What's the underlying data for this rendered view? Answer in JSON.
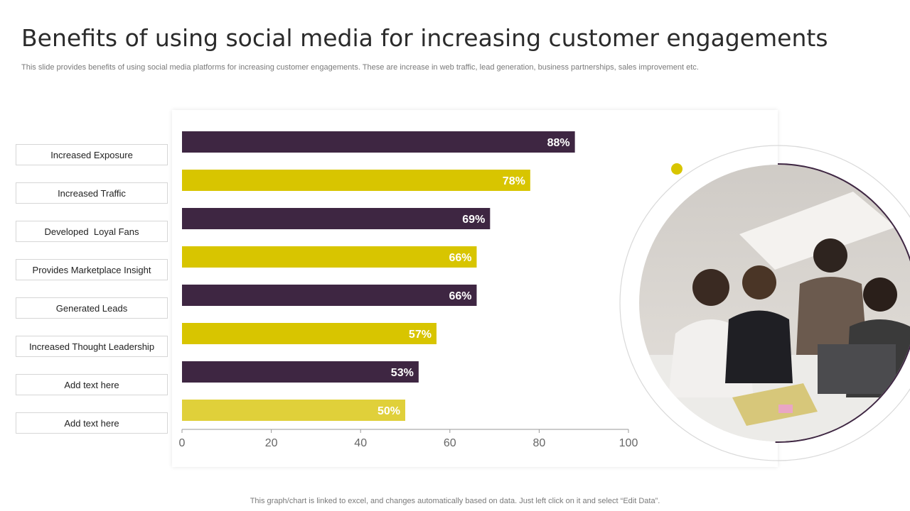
{
  "title": "Benefits of using social media for increasing customer engagements",
  "subtitle": "This slide provides benefits of using social media platforms for increasing customer engagements. These are increase in web traffic, lead generation, business partnerships, sales improvement etc.",
  "footer": "This graph/chart is linked to excel,  and changes automatically based on data. Just left click on it and select “Edit Data”.",
  "colors": {
    "purple": "#3e2642",
    "yellow": "#d8c500",
    "yellow_light": "#e0d03a",
    "axis": "#999999"
  },
  "chart_data": {
    "type": "bar",
    "orientation": "horizontal",
    "categories": [
      "Increased Exposure",
      "Increased Traffic",
      "Developed  Loyal Fans",
      "Provides Marketplace Insight",
      "Generated Leads",
      "Increased Thought Leadership",
      "Add text here",
      "Add text here"
    ],
    "values": [
      88,
      78,
      69,
      66,
      66,
      57,
      53,
      50
    ],
    "value_labels": [
      "88%",
      "78%",
      "69%",
      "66%",
      "66%",
      "57%",
      "53%",
      "50%"
    ],
    "bar_colors": [
      "purple",
      "yellow",
      "purple",
      "yellow",
      "purple",
      "yellow",
      "purple",
      "yellow_light"
    ],
    "xlim": [
      0,
      100
    ],
    "xticks": [
      0,
      20,
      40,
      60,
      80,
      100
    ],
    "grid": false,
    "title": "",
    "xlabel": "",
    "ylabel": ""
  },
  "photo": {
    "icon": "team-meeting-photo"
  }
}
